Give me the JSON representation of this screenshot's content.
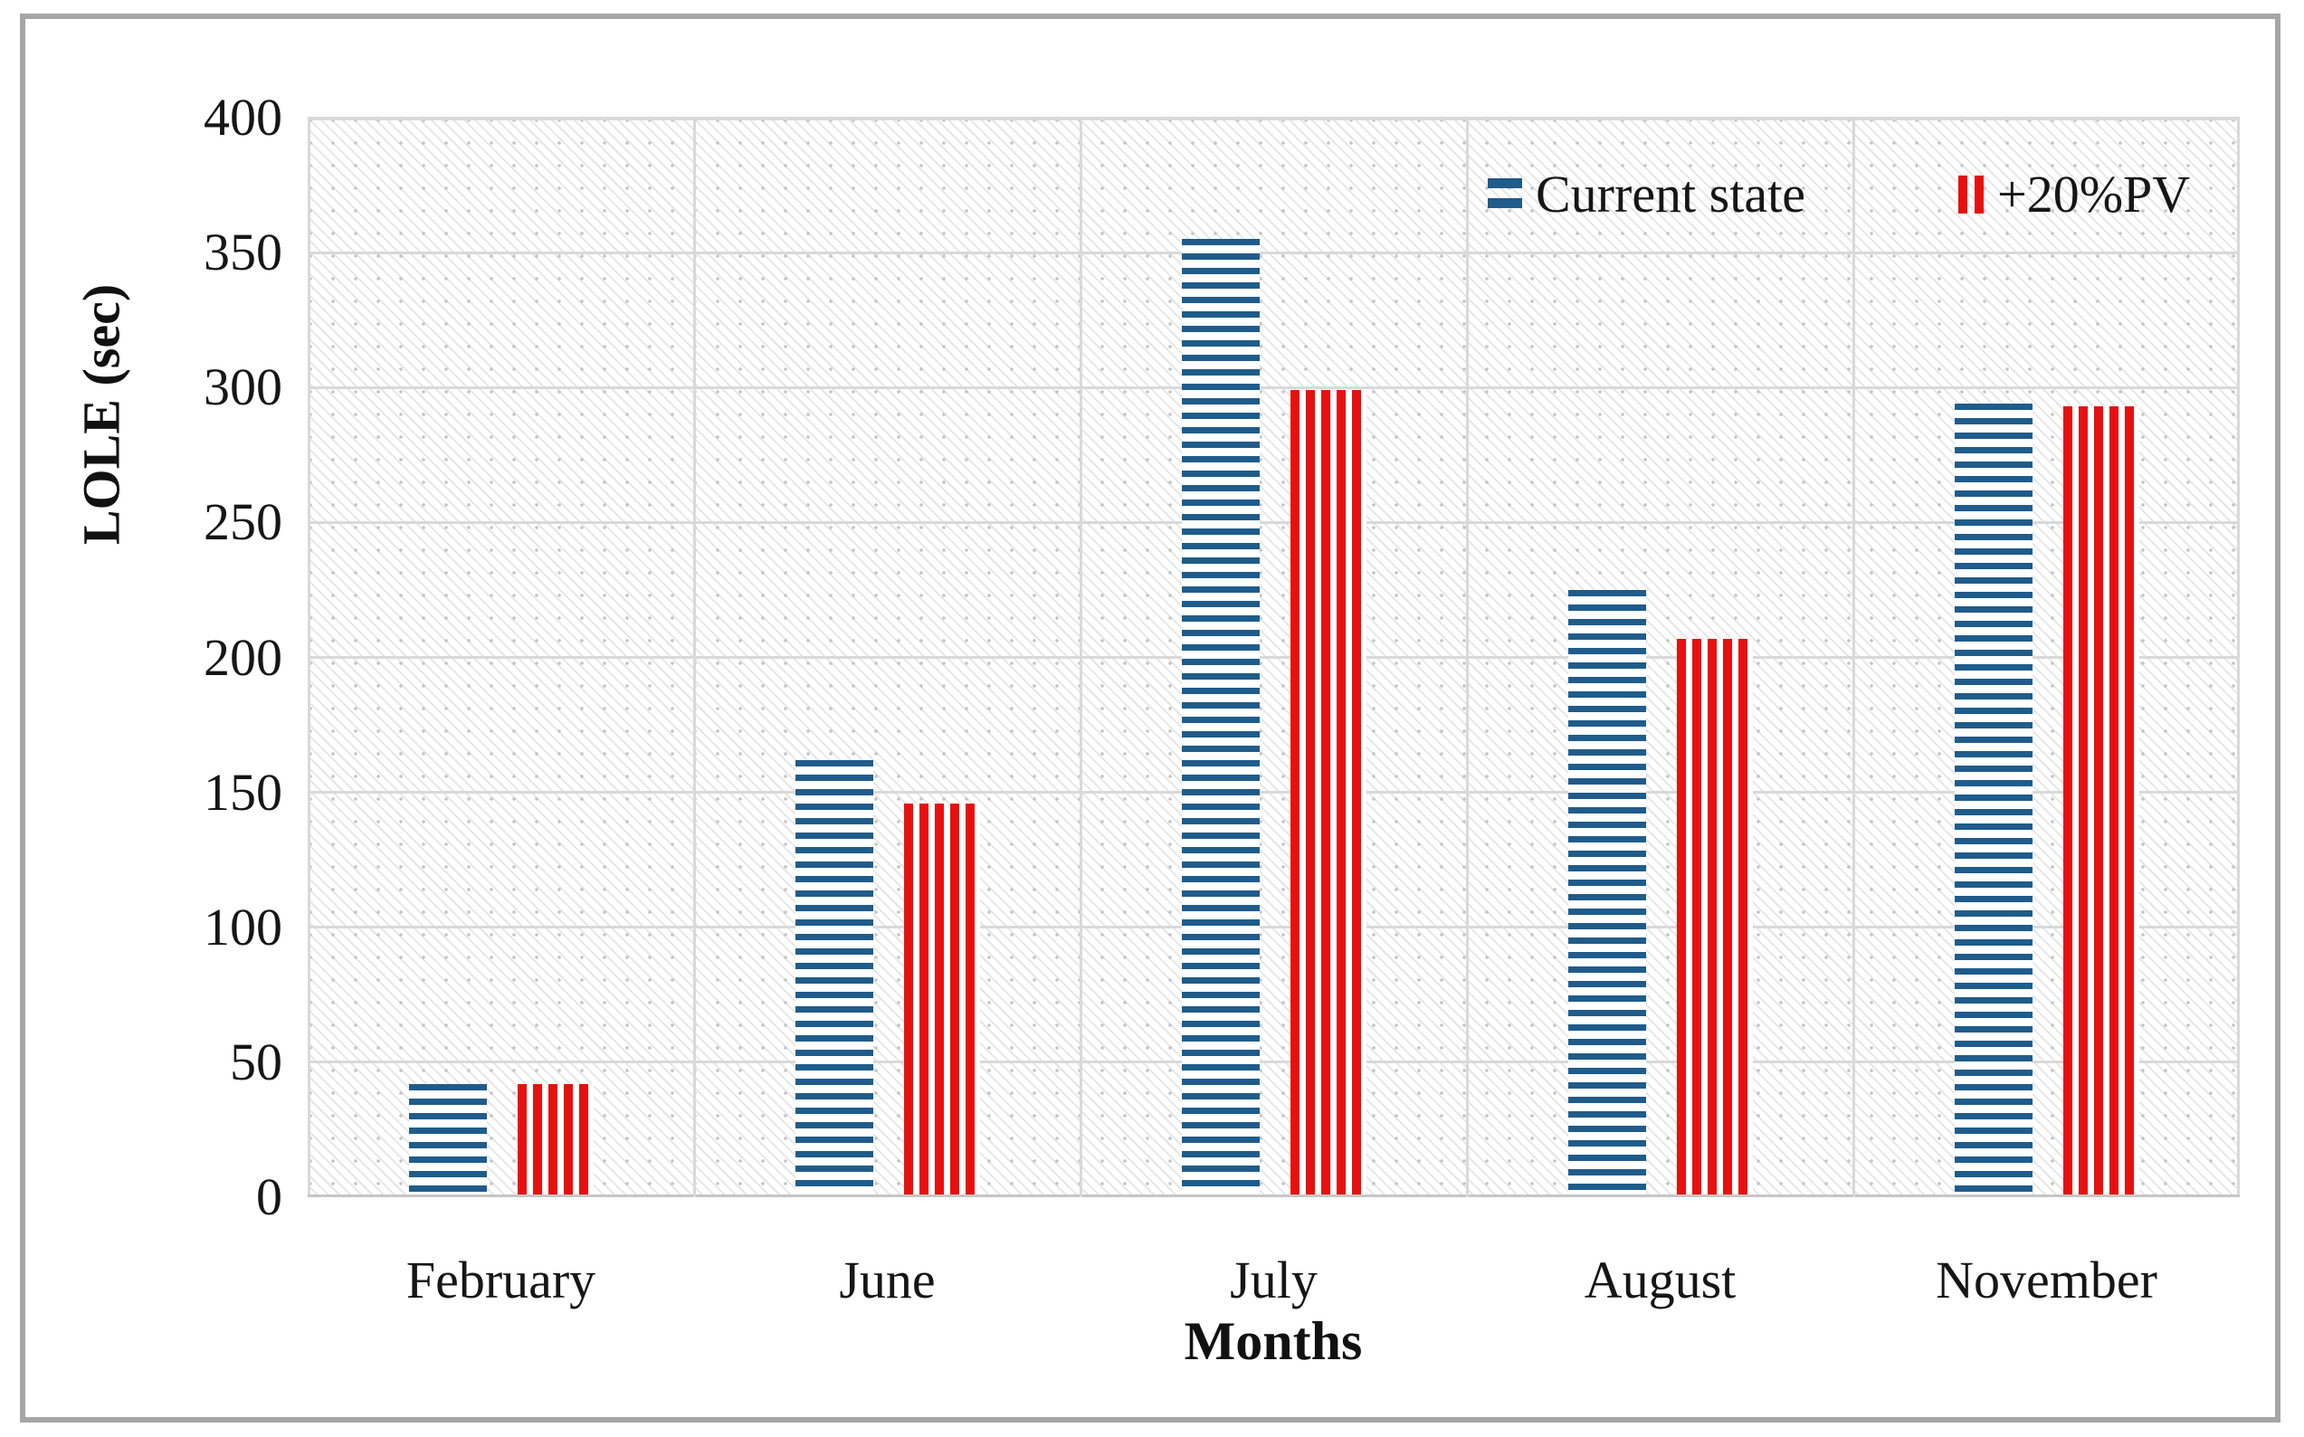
{
  "chart_data": {
    "type": "bar",
    "title": "",
    "categories": [
      "February",
      "June",
      "July",
      "August",
      "November"
    ],
    "series": [
      {
        "name": "Current state",
        "values": [
          41,
          161,
          354,
          224,
          293
        ],
        "color": "#1f5c8b",
        "pattern": "horizontal-stripes"
      },
      {
        "name": "+20%PV",
        "values": [
          41,
          145,
          298,
          206,
          292
        ],
        "color": "#e8100f",
        "pattern": "vertical-stripes"
      }
    ],
    "xlabel": "Months",
    "ylabel": "LOLE (sec)",
    "ylim": [
      0,
      400
    ],
    "yticks": [
      0,
      50,
      100,
      150,
      200,
      250,
      300,
      350,
      400
    ],
    "grid": true,
    "legend_position": "top-right-inside",
    "plot_background": "diagonal-dot-hatch"
  },
  "colors": {
    "grid": "#d9d9d9",
    "frame": "#a6a6a6",
    "axis_text": "#161616"
  }
}
